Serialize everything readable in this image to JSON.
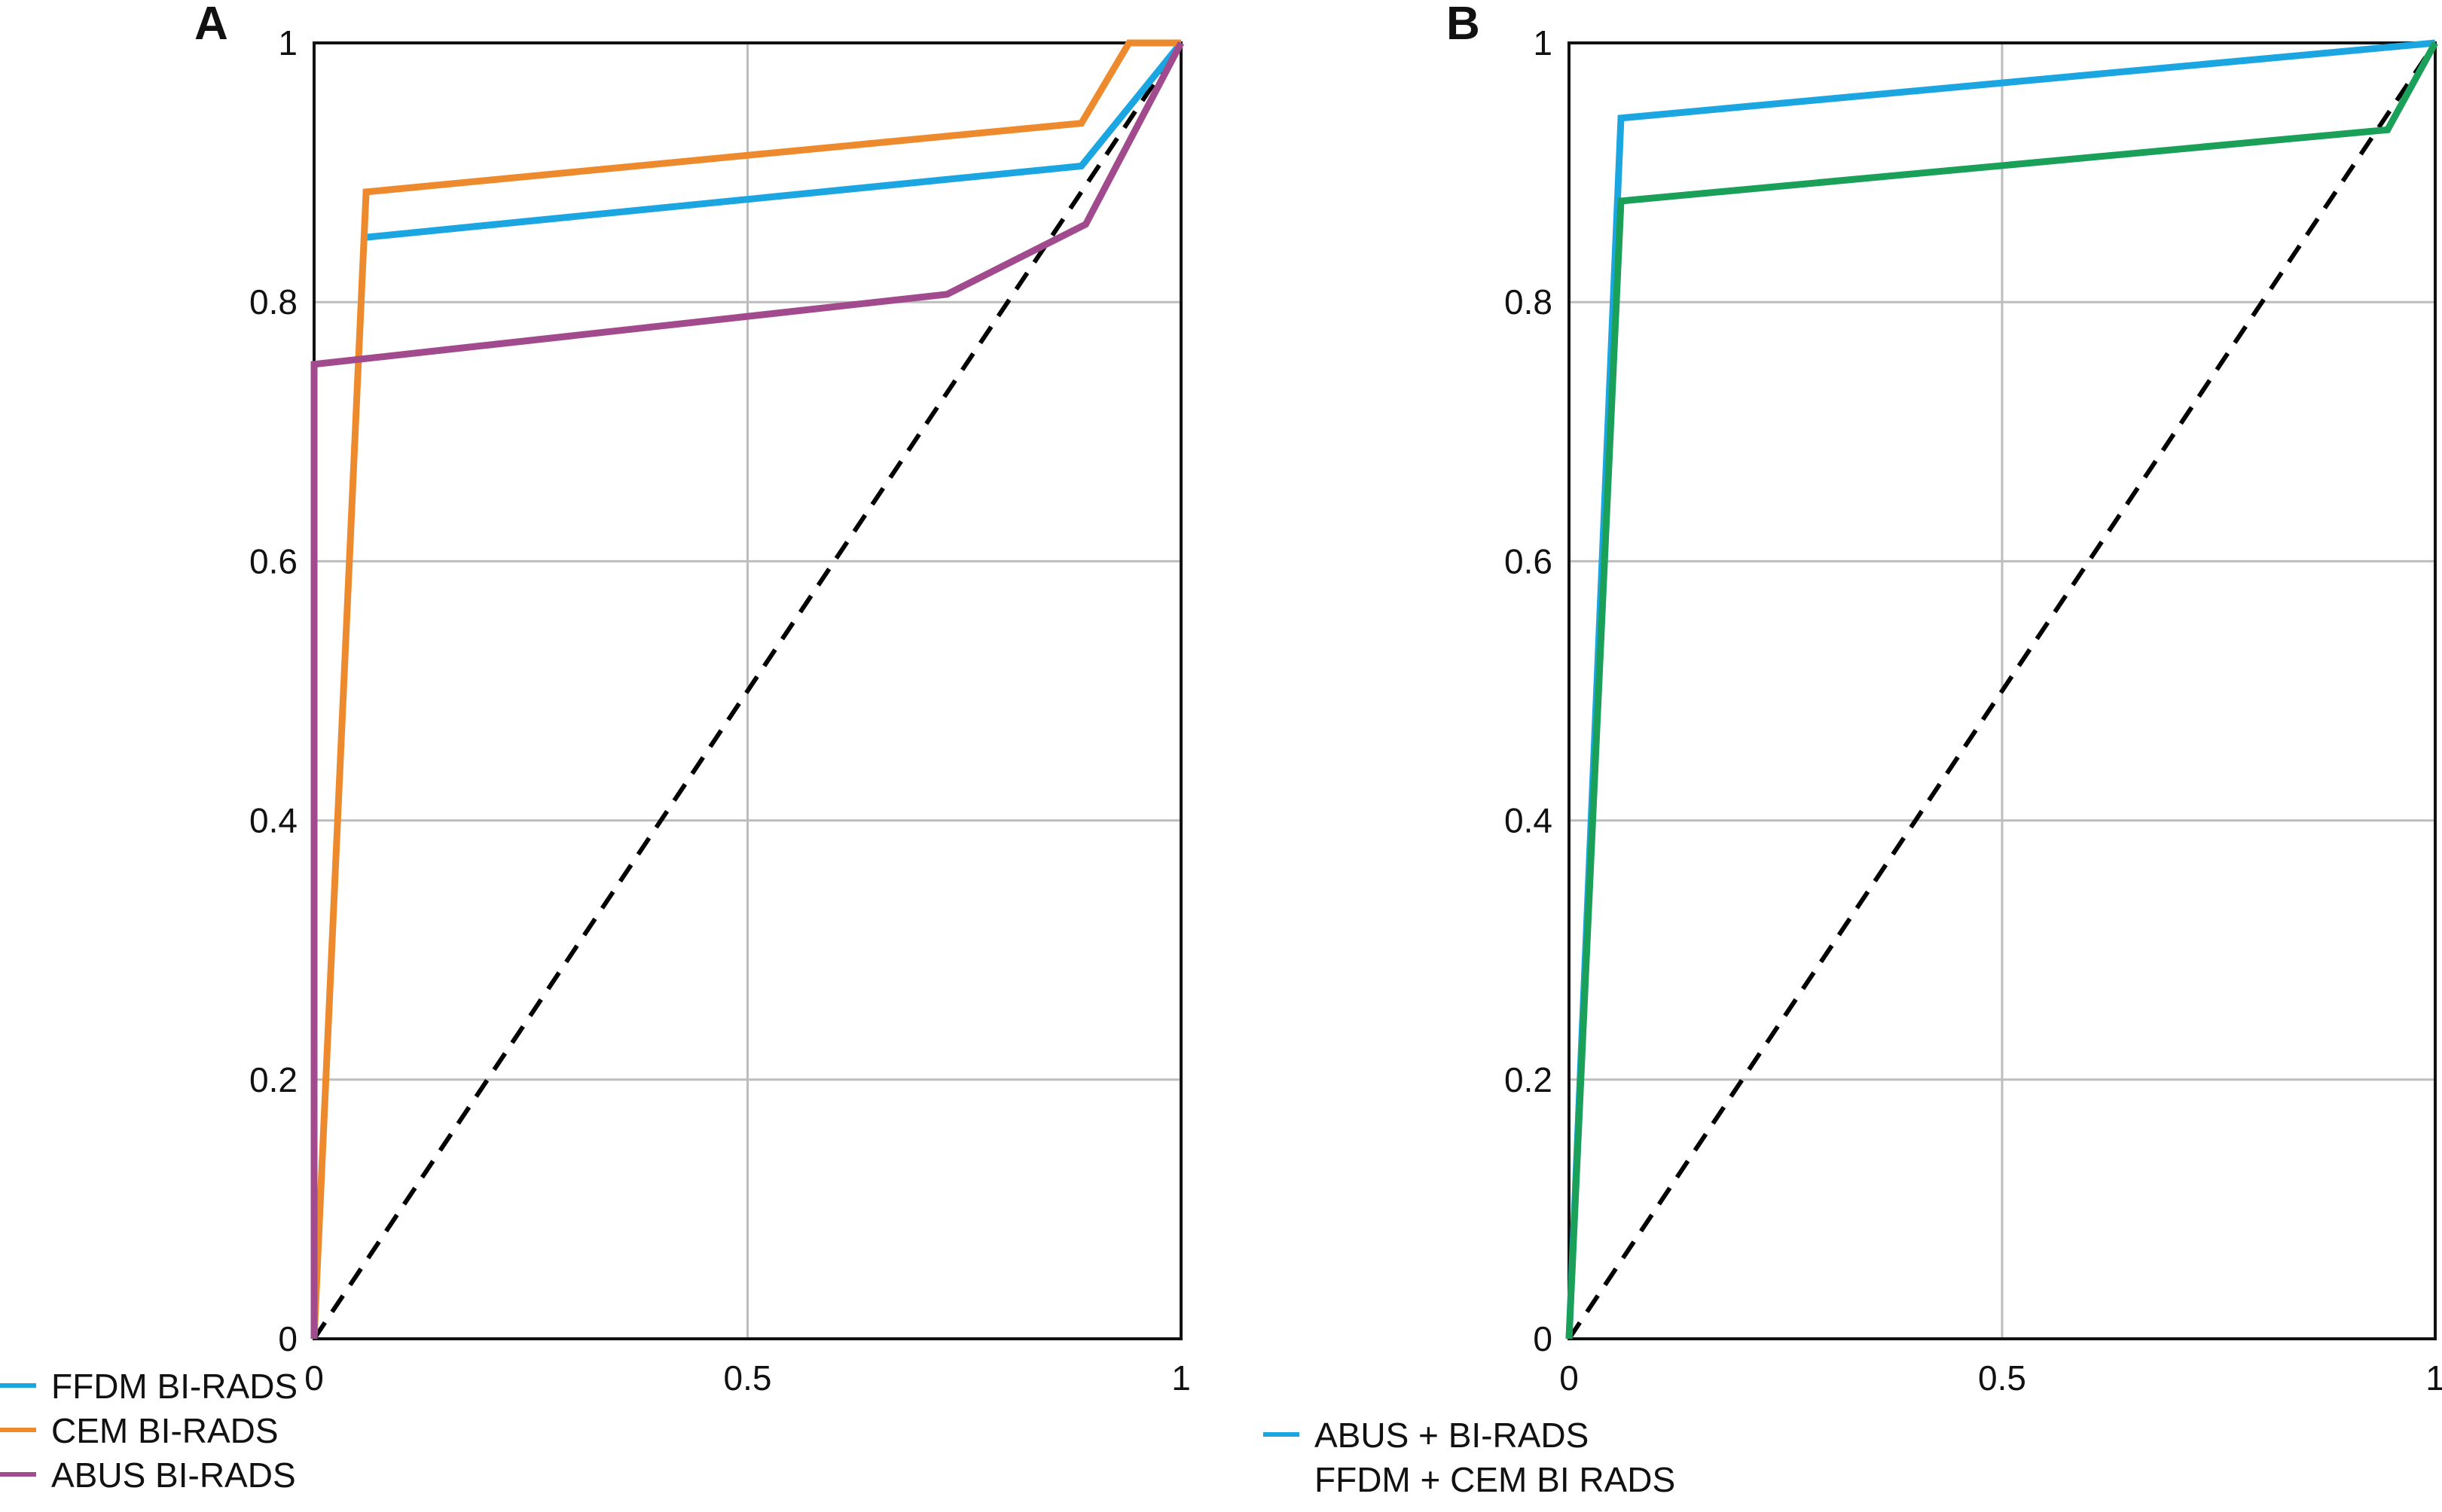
{
  "chart_data": [
    {
      "panel": "A",
      "type": "line",
      "xlim": [
        0,
        1
      ],
      "ylim": [
        0,
        1
      ],
      "x_ticks": [
        "0",
        "0.5",
        "1"
      ],
      "y_ticks": [
        "0",
        "0.2",
        "0.4",
        "0.6",
        "0.8",
        "1"
      ],
      "grid": true,
      "legend_position": "bottom-left",
      "series": [
        {
          "name": "FFDM BI-RADS",
          "color": "#1BA6E2",
          "points": [
            [
              0.06,
              0.85
            ],
            [
              0.885,
              0.905
            ],
            [
              1,
              1
            ]
          ]
        },
        {
          "name": "CEM BI-RADS",
          "color": "#EE8A2E",
          "points": [
            [
              0,
              0
            ],
            [
              0.06,
              0.885
            ],
            [
              0.885,
              0.938
            ],
            [
              0.94,
              1
            ],
            [
              1,
              1
            ]
          ]
        },
        {
          "name": "ABUS BI-RADS",
          "color": "#A24A8E",
          "points": [
            [
              0,
              0
            ],
            [
              0,
              0.752
            ],
            [
              0.73,
              0.806
            ],
            [
              0.89,
              0.86
            ],
            [
              1,
              1
            ]
          ]
        }
      ],
      "reference_line": {
        "color": "#000000",
        "points": [
          [
            0,
            0
          ],
          [
            1,
            1
          ]
        ]
      }
    },
    {
      "panel": "B",
      "type": "line",
      "xlim": [
        0,
        1
      ],
      "ylim": [
        0,
        1
      ],
      "x_ticks": [
        "0",
        "0.5",
        "1"
      ],
      "y_ticks": [
        "0",
        "0.2",
        "0.4",
        "0.6",
        "0.8",
        "1"
      ],
      "grid": true,
      "legend_position": "bottom-left",
      "series": [
        {
          "name": "ABUS + BI-RADS",
          "color": "#1BA6E2",
          "points": [
            [
              0,
              0
            ],
            [
              0.06,
              0.942
            ],
            [
              1,
              1
            ]
          ]
        },
        {
          "name": "FFDM + CEM BI RADS",
          "color": "#1BA05A",
          "legend_marker": false,
          "points": [
            [
              0,
              0
            ],
            [
              0.06,
              0.878
            ],
            [
              0.945,
              0.933
            ],
            [
              1,
              1
            ]
          ]
        }
      ],
      "reference_line": {
        "color": "#000000",
        "points": [
          [
            0,
            0
          ],
          [
            1,
            1
          ]
        ]
      }
    }
  ]
}
